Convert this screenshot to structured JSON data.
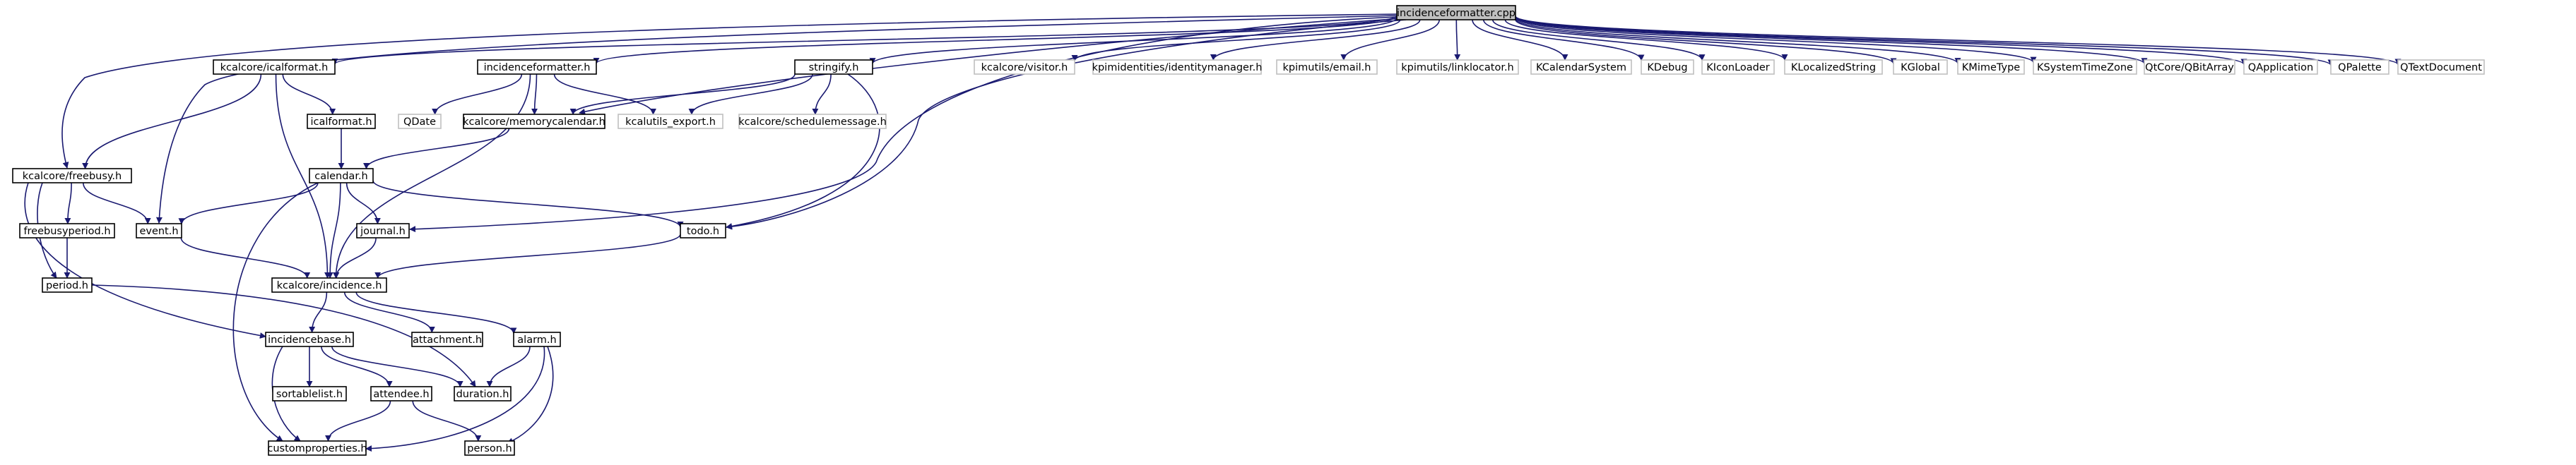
{
  "graph": {
    "type": "include-dependency-graph",
    "root": "incidenceformatter.cpp",
    "colors": {
      "edge": "#191970",
      "node_border": "#000000",
      "missing_border": "#bfbfbf",
      "root_fill": "#bfbfbf",
      "node_fill": "#ffffff",
      "text": "#000000"
    },
    "nodes": [
      {
        "id": "incidenceformatter-cpp",
        "label": "incidenceformatter.cpp",
        "style": "root"
      },
      {
        "id": "kcalcore-icalformat-h",
        "label": "kcalcore/icalformat.h",
        "style": "normal"
      },
      {
        "id": "incidenceformatter-h",
        "label": "incidenceformatter.h",
        "style": "normal"
      },
      {
        "id": "stringify-h",
        "label": "stringify.h",
        "style": "normal"
      },
      {
        "id": "kcalcore-visitor-h",
        "label": "kcalcore/visitor.h",
        "style": "missing"
      },
      {
        "id": "kpimidentities-identitymanager-h",
        "label": "kpimidentities/identitymanager.h",
        "style": "missing"
      },
      {
        "id": "kpimutils-email-h",
        "label": "kpimutils/email.h",
        "style": "missing"
      },
      {
        "id": "kpimutils-linklocator-h",
        "label": "kpimutils/linklocator.h",
        "style": "missing"
      },
      {
        "id": "kcalendarsystem",
        "label": "KCalendarSystem",
        "style": "missing"
      },
      {
        "id": "kdebug",
        "label": "KDebug",
        "style": "missing"
      },
      {
        "id": "kiconloader",
        "label": "KIconLoader",
        "style": "missing"
      },
      {
        "id": "klocalizedstring",
        "label": "KLocalizedString",
        "style": "missing"
      },
      {
        "id": "kglobal",
        "label": "KGlobal",
        "style": "missing"
      },
      {
        "id": "kmimetype",
        "label": "KMimeType",
        "style": "missing"
      },
      {
        "id": "ksystemtimezone",
        "label": "KSystemTimeZone",
        "style": "missing"
      },
      {
        "id": "qtcore-qbitarray",
        "label": "QtCore/QBitArray",
        "style": "missing"
      },
      {
        "id": "qapplication",
        "label": "QApplication",
        "style": "missing"
      },
      {
        "id": "qpalette",
        "label": "QPalette",
        "style": "missing"
      },
      {
        "id": "qtextdocument",
        "label": "QTextDocument",
        "style": "missing"
      },
      {
        "id": "icalformat-h",
        "label": "icalformat.h",
        "style": "normal"
      },
      {
        "id": "qdate",
        "label": "QDate",
        "style": "missing"
      },
      {
        "id": "kcalcore-memorycalendar-h",
        "label": "kcalcore/memorycalendar.h",
        "style": "normal"
      },
      {
        "id": "kcalutils-export-h",
        "label": "kcalutils_export.h",
        "style": "missing"
      },
      {
        "id": "kcalcore-schedulemessage-h",
        "label": "kcalcore/schedulemessage.h",
        "style": "missing"
      },
      {
        "id": "kcalcore-freebusy-h",
        "label": "kcalcore/freebusy.h",
        "style": "normal"
      },
      {
        "id": "calendar-h",
        "label": "calendar.h",
        "style": "normal"
      },
      {
        "id": "freebusyperiod-h",
        "label": "freebusyperiod.h",
        "style": "normal"
      },
      {
        "id": "event-h",
        "label": "event.h",
        "style": "normal"
      },
      {
        "id": "journal-h",
        "label": "journal.h",
        "style": "normal"
      },
      {
        "id": "todo-h",
        "label": "todo.h",
        "style": "normal"
      },
      {
        "id": "period-h",
        "label": "period.h",
        "style": "normal"
      },
      {
        "id": "kcalcore-incidence-h",
        "label": "kcalcore/incidence.h",
        "style": "normal"
      },
      {
        "id": "incidencebase-h",
        "label": "incidencebase.h",
        "style": "normal"
      },
      {
        "id": "attachment-h",
        "label": "attachment.h",
        "style": "normal"
      },
      {
        "id": "alarm-h",
        "label": "alarm.h",
        "style": "normal"
      },
      {
        "id": "sortablelist-h",
        "label": "sortablelist.h",
        "style": "normal"
      },
      {
        "id": "attendee-h",
        "label": "attendee.h",
        "style": "normal"
      },
      {
        "id": "duration-h",
        "label": "duration.h",
        "style": "normal"
      },
      {
        "id": "customproperties-h",
        "label": "customproperties.h",
        "style": "normal"
      },
      {
        "id": "person-h",
        "label": "person.h",
        "style": "normal"
      }
    ],
    "edges": [
      {
        "from": "incidenceformatter-cpp",
        "to": "kcalcore-icalformat-h"
      },
      {
        "from": "incidenceformatter-cpp",
        "to": "incidenceformatter-h"
      },
      {
        "from": "incidenceformatter-cpp",
        "to": "stringify-h"
      },
      {
        "from": "incidenceformatter-cpp",
        "to": "kcalcore-visitor-h"
      },
      {
        "from": "incidenceformatter-cpp",
        "to": "kpimidentities-identitymanager-h"
      },
      {
        "from": "incidenceformatter-cpp",
        "to": "kpimutils-email-h"
      },
      {
        "from": "incidenceformatter-cpp",
        "to": "kpimutils-linklocator-h"
      },
      {
        "from": "incidenceformatter-cpp",
        "to": "kcalendarsystem"
      },
      {
        "from": "incidenceformatter-cpp",
        "to": "kdebug"
      },
      {
        "from": "incidenceformatter-cpp",
        "to": "kiconloader"
      },
      {
        "from": "incidenceformatter-cpp",
        "to": "klocalizedstring"
      },
      {
        "from": "incidenceformatter-cpp",
        "to": "kglobal"
      },
      {
        "from": "incidenceformatter-cpp",
        "to": "kmimetype"
      },
      {
        "from": "incidenceformatter-cpp",
        "to": "ksystemtimezone"
      },
      {
        "from": "incidenceformatter-cpp",
        "to": "qtcore-qbitarray"
      },
      {
        "from": "incidenceformatter-cpp",
        "to": "qapplication"
      },
      {
        "from": "incidenceformatter-cpp",
        "to": "qpalette"
      },
      {
        "from": "incidenceformatter-cpp",
        "to": "qtextdocument"
      },
      {
        "from": "incidenceformatter-cpp",
        "to": "kcalcore-freebusy-h"
      },
      {
        "from": "incidenceformatter-cpp",
        "to": "event-h"
      },
      {
        "from": "incidenceformatter-cpp",
        "to": "journal-h"
      },
      {
        "from": "incidenceformatter-cpp",
        "to": "todo-h"
      },
      {
        "from": "incidenceformatter-cpp",
        "to": "kcalcore-memorycalendar-h"
      },
      {
        "from": "kcalcore-icalformat-h",
        "to": "icalformat-h"
      },
      {
        "from": "kcalcore-icalformat-h",
        "to": "kcalcore-freebusy-h"
      },
      {
        "from": "kcalcore-icalformat-h",
        "to": "kcalcore-incidence-h"
      },
      {
        "from": "incidenceformatter-h",
        "to": "qdate"
      },
      {
        "from": "incidenceformatter-h",
        "to": "kcalcore-memorycalendar-h"
      },
      {
        "from": "incidenceformatter-h",
        "to": "kcalutils-export-h"
      },
      {
        "from": "incidenceformatter-h",
        "to": "kcalcore-incidence-h"
      },
      {
        "from": "stringify-h",
        "to": "kcalutils-export-h"
      },
      {
        "from": "stringify-h",
        "to": "kcalcore-schedulemessage-h"
      },
      {
        "from": "stringify-h",
        "to": "kcalcore-memorycalendar-h"
      },
      {
        "from": "stringify-h",
        "to": "todo-h"
      },
      {
        "from": "icalformat-h",
        "to": "calendar-h"
      },
      {
        "from": "kcalcore-memorycalendar-h",
        "to": "calendar-h"
      },
      {
        "from": "kcalcore-freebusy-h",
        "to": "freebusyperiod-h"
      },
      {
        "from": "kcalcore-freebusy-h",
        "to": "event-h"
      },
      {
        "from": "kcalcore-freebusy-h",
        "to": "period-h"
      },
      {
        "from": "kcalcore-freebusy-h",
        "to": "incidencebase-h"
      },
      {
        "from": "calendar-h",
        "to": "event-h"
      },
      {
        "from": "calendar-h",
        "to": "journal-h"
      },
      {
        "from": "calendar-h",
        "to": "todo-h"
      },
      {
        "from": "calendar-h",
        "to": "kcalcore-incidence-h"
      },
      {
        "from": "calendar-h",
        "to": "customproperties-h"
      },
      {
        "from": "freebusyperiod-h",
        "to": "period-h"
      },
      {
        "from": "event-h",
        "to": "kcalcore-incidence-h"
      },
      {
        "from": "journal-h",
        "to": "kcalcore-incidence-h"
      },
      {
        "from": "todo-h",
        "to": "kcalcore-incidence-h"
      },
      {
        "from": "period-h",
        "to": "duration-h"
      },
      {
        "from": "kcalcore-incidence-h",
        "to": "incidencebase-h"
      },
      {
        "from": "kcalcore-incidence-h",
        "to": "attachment-h"
      },
      {
        "from": "kcalcore-incidence-h",
        "to": "alarm-h"
      },
      {
        "from": "incidencebase-h",
        "to": "sortablelist-h"
      },
      {
        "from": "incidencebase-h",
        "to": "attendee-h"
      },
      {
        "from": "incidencebase-h",
        "to": "duration-h"
      },
      {
        "from": "incidencebase-h",
        "to": "customproperties-h"
      },
      {
        "from": "alarm-h",
        "to": "duration-h"
      },
      {
        "from": "alarm-h",
        "to": "customproperties-h"
      },
      {
        "from": "alarm-h",
        "to": "person-h"
      },
      {
        "from": "attendee-h",
        "to": "customproperties-h"
      },
      {
        "from": "attendee-h",
        "to": "person-h"
      }
    ]
  }
}
